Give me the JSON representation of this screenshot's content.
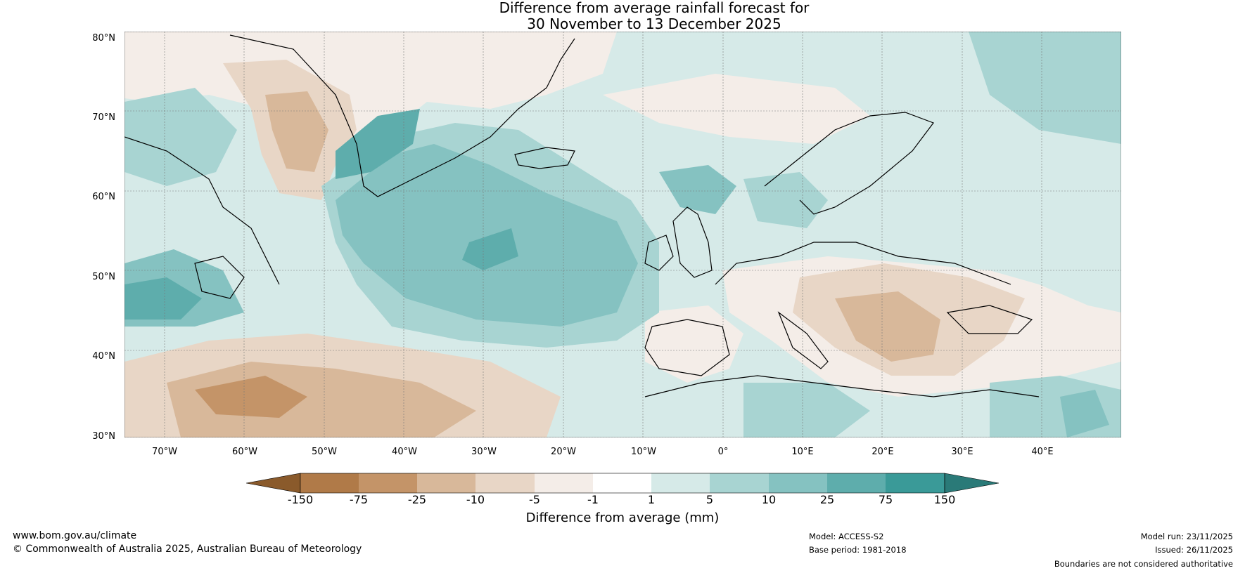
{
  "title": {
    "line1": "Difference from average rainfall forecast for",
    "line2": "30 November to 13 December 2025"
  },
  "map": {
    "region": "North Atlantic and Europe",
    "lat_labels": [
      "80°N",
      "70°N",
      "60°N",
      "50°N",
      "40°N",
      "30°N"
    ],
    "lon_labels": [
      "70°W",
      "60°W",
      "50°W",
      "40°W",
      "30°W",
      "20°W",
      "10°W",
      "0°",
      "10°E",
      "20°E",
      "30°E",
      "40°E"
    ]
  },
  "legend": {
    "title": "Difference from average (mm)",
    "ticks": [
      "-150",
      "-75",
      "-25",
      "-10",
      "-5",
      "-1",
      "1",
      "5",
      "10",
      "25",
      "75",
      "150"
    ],
    "colors": [
      "#8a5a2b",
      "#b07a48",
      "#c49468",
      "#d8b89a",
      "#e8d6c6",
      "#f4ede8",
      "#ffffff",
      "#d6eae8",
      "#a8d4d2",
      "#85c2c1",
      "#5eadac",
      "#3a9a98",
      "#2a7a78"
    ]
  },
  "footer": {
    "website": "www.bom.gov.au/climate",
    "copyright": "© Commonwealth of Australia 2025, Australian Bureau of Meteorology",
    "model": "Model: ACCESS-S2",
    "base_period": "Base period: 1981-2018",
    "model_run": "Model run: 23/11/2025",
    "issued": "Issued: 26/11/2025",
    "disclaimer": "Boundaries are not considered authoritative"
  }
}
